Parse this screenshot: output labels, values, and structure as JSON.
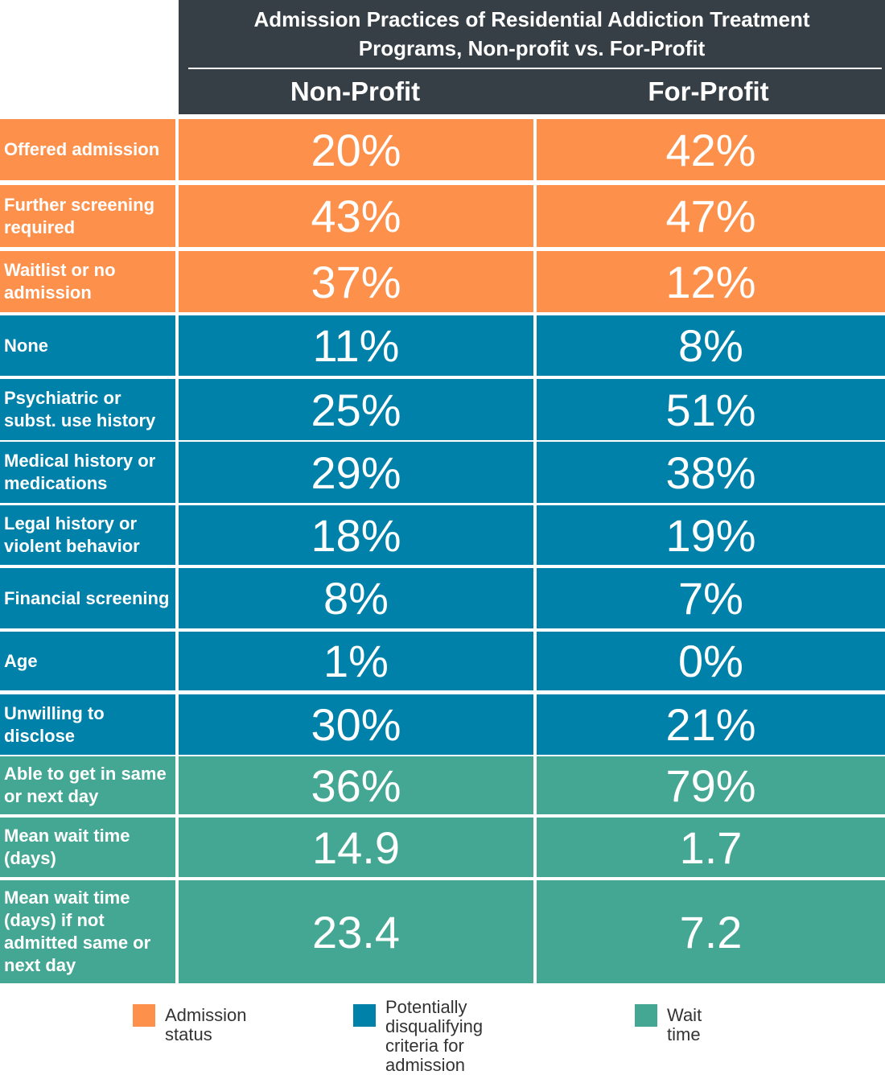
{
  "colors": {
    "header": "#363f46",
    "admission_status": "#fd914c",
    "disqualifying": "#0081a9",
    "wait_time": "#44a793"
  },
  "header": {
    "title": "Admission Practices of Residential Addiction Treatment\nPrograms, Non-profit vs. For-Profit",
    "col_nonprofit": "Non-Profit",
    "col_forprofit": "For-Profit"
  },
  "chart_data": {
    "type": "table",
    "title": "Admission Practices of Residential Addiction Treatment Programs, Non-profit vs. For-Profit",
    "columns": [
      "Non-Profit",
      "For-Profit"
    ],
    "rows": [
      {
        "label": "Offered admission",
        "group": "admission_status",
        "nonprofit": "20%",
        "forprofit": "42%"
      },
      {
        "label": "Further screening required",
        "group": "admission_status",
        "nonprofit": "43%",
        "forprofit": "47%"
      },
      {
        "label": "Waitlist or no admission",
        "group": "admission_status",
        "nonprofit": "37%",
        "forprofit": "12%"
      },
      {
        "label": "None",
        "group": "disqualifying",
        "nonprofit": "11%",
        "forprofit": "8%"
      },
      {
        "label": "Psychiatric or subst. use history",
        "group": "disqualifying",
        "nonprofit": "25%",
        "forprofit": "51%"
      },
      {
        "label": "Medical history or medications",
        "group": "disqualifying",
        "nonprofit": "29%",
        "forprofit": "38%"
      },
      {
        "label": "Legal history or violent behavior",
        "group": "disqualifying",
        "nonprofit": "18%",
        "forprofit": "19%"
      },
      {
        "label": "Financial screening",
        "group": "disqualifying",
        "nonprofit": "8%",
        "forprofit": "7%"
      },
      {
        "label": "Age",
        "group": "disqualifying",
        "nonprofit": "1%",
        "forprofit": "0%"
      },
      {
        "label": "Unwilling to disclose",
        "group": "disqualifying",
        "nonprofit": "30%",
        "forprofit": "21%"
      },
      {
        "label": "Able to get in same or next day",
        "group": "wait_time",
        "nonprofit": "36%",
        "forprofit": "79%"
      },
      {
        "label": "Mean wait time (days)",
        "group": "wait_time",
        "nonprofit": "14.9",
        "forprofit": "1.7"
      },
      {
        "label": "Mean wait time (days) if not admitted same or next day",
        "group": "wait_time",
        "nonprofit": "23.4",
        "forprofit": "7.2"
      }
    ],
    "legend": [
      {
        "label": "Admission status",
        "group": "admission_status"
      },
      {
        "label": "Potentially disqualifying\ncriteria for admission",
        "group": "disqualifying"
      },
      {
        "label": "Wait time",
        "group": "wait_time"
      }
    ]
  }
}
